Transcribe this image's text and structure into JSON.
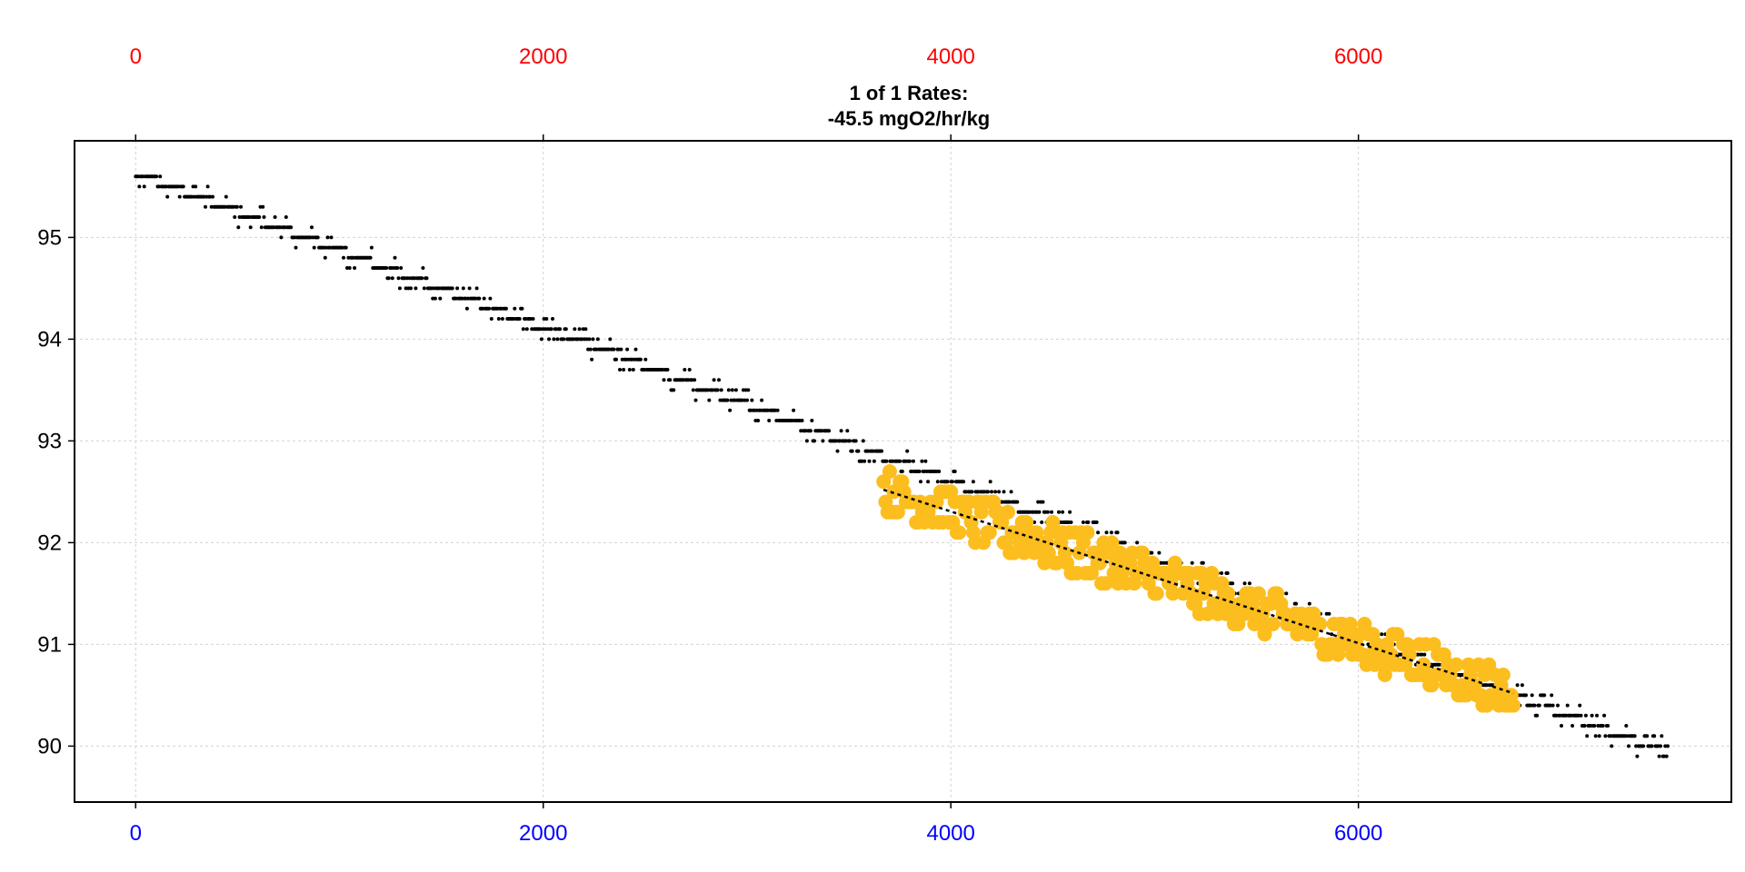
{
  "chart_data": {
    "type": "scatter",
    "title_lines": [
      "1 of 1 Rates:",
      "-45.5 mgO2/hr/kg"
    ],
    "xlabel": "",
    "ylabel": "",
    "xlim": [
      -300,
      7830
    ],
    "ylim": [
      89.45,
      95.95
    ],
    "x_ticks": [
      0,
      2000,
      4000,
      6000
    ],
    "y_ticks": [
      90,
      91,
      92,
      93,
      94,
      95
    ],
    "top_axis_ticks": [
      0,
      2000,
      4000,
      6000
    ],
    "grid": true,
    "colors": {
      "top_axis": "#ff0000",
      "bottom_axis": "#0000ff",
      "points": "#000000",
      "highlight": "#fcbd1f",
      "fit_line": "#000000",
      "grid": "#d3d3d3"
    },
    "series": [
      {
        "role": "all-data",
        "x_range": [
          0,
          7520
        ],
        "trend": [
          [
            0,
            95.63
          ],
          [
            7520,
            89.93
          ]
        ],
        "y_min": 89.7,
        "y_max": 95.7,
        "resolution": 0.1
      },
      {
        "role": "selected-subset",
        "x_range": [
          3670,
          6760
        ],
        "trend": [
          [
            3670,
            92.52
          ],
          [
            6760,
            90.52
          ]
        ]
      }
    ],
    "fit": {
      "x": [
        3670,
        6760
      ],
      "y": [
        92.52,
        90.52
      ],
      "style": "dotted"
    }
  }
}
